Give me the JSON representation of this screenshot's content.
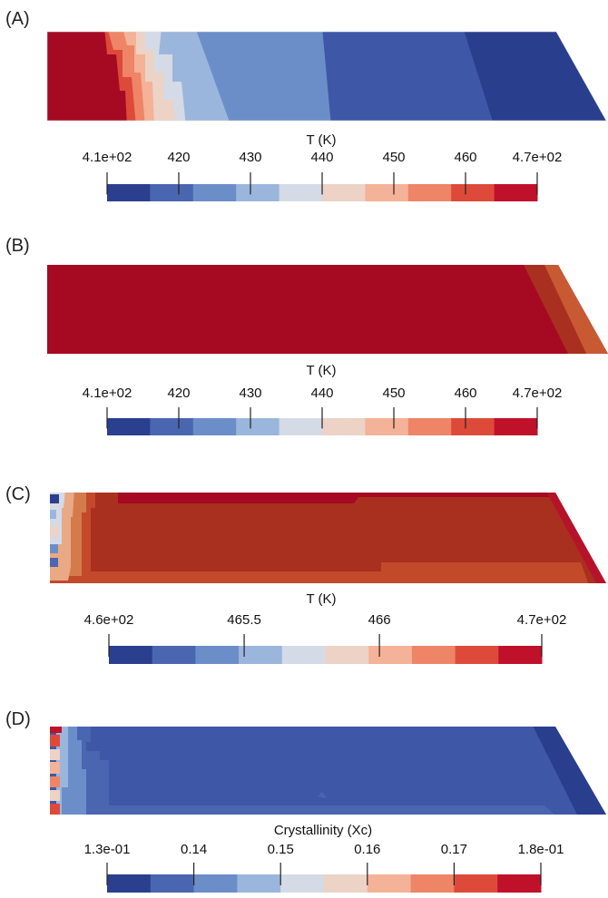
{
  "panels": [
    {
      "id": "A",
      "label": "(A)",
      "colorbar": {
        "title": "T (K)",
        "ticks": [
          {
            "value": 410,
            "label": "4.1e+02"
          },
          {
            "value": 420,
            "label": "420"
          },
          {
            "value": 430,
            "label": "430"
          },
          {
            "value": 440,
            "label": "440"
          },
          {
            "value": 450,
            "label": "450"
          },
          {
            "value": 460,
            "label": "460"
          },
          {
            "value": 470,
            "label": "4.7e+02"
          }
        ],
        "range": [
          410,
          470
        ]
      }
    },
    {
      "id": "B",
      "label": "(B)",
      "colorbar": {
        "title": "T (K)",
        "ticks": [
          {
            "value": 410,
            "label": "4.1e+02"
          },
          {
            "value": 420,
            "label": "420"
          },
          {
            "value": 430,
            "label": "430"
          },
          {
            "value": 440,
            "label": "440"
          },
          {
            "value": 450,
            "label": "450"
          },
          {
            "value": 460,
            "label": "460"
          },
          {
            "value": 470,
            "label": "4.7e+02"
          }
        ],
        "range": [
          410,
          470
        ]
      }
    },
    {
      "id": "C",
      "label": "(C)",
      "colorbar": {
        "title": "T (K)",
        "ticks": [
          {
            "value": 465,
            "label": "4.6e+02"
          },
          {
            "value": 465.5,
            "label": "465.5"
          },
          {
            "value": 466,
            "label": "466"
          },
          {
            "value": 466.6,
            "label": "4.7e+02"
          }
        ],
        "range": [
          465,
          466.6
        ]
      }
    },
    {
      "id": "D",
      "label": "(D)",
      "colorbar": {
        "title": "Crystallinity (Xc)",
        "ticks": [
          {
            "value": 0.13,
            "label": "1.3e-01"
          },
          {
            "value": 0.14,
            "label": "0.14"
          },
          {
            "value": 0.15,
            "label": "0.15"
          },
          {
            "value": 0.16,
            "label": "0.16"
          },
          {
            "value": 0.17,
            "label": "0.17"
          },
          {
            "value": 0.18,
            "label": "1.8e-01"
          }
        ],
        "range": [
          0.13,
          0.18
        ]
      }
    }
  ],
  "colormap": [
    "#2b3f8f",
    "#4a66b0",
    "#6c8ec8",
    "#9bb6dc",
    "#d4dbe6",
    "#ecd3c6",
    "#f4b298",
    "#ed8566",
    "#de4a3a",
    "#c0112a"
  ],
  "field_colors": {
    "dark_red": "#a50a22",
    "rust": "#a9301f",
    "deep_blue": "#2a3e8e",
    "mid_blue": "#3e58a7"
  }
}
